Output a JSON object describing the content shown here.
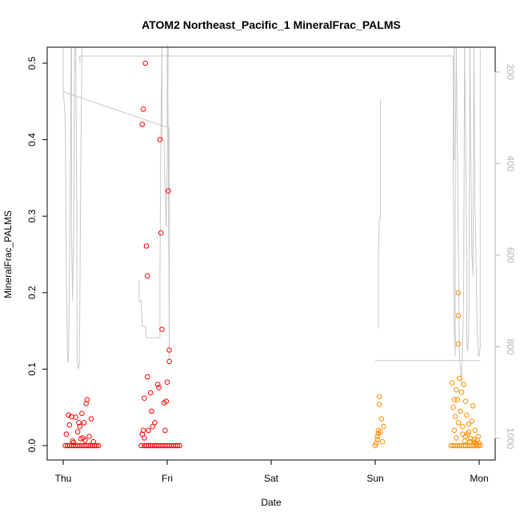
{
  "chart_data": {
    "type": "scatter",
    "title": "ATOM2 Northeast_Pacific_1 MineralFrac_PALMS",
    "xlabel": "Date",
    "ylabel": "MineralFrac_PALMS",
    "x_ticks": [
      "Thu",
      "Fri",
      "Sat",
      "Sun",
      "Mon"
    ],
    "y_ticks": [
      "0.0",
      "0.1",
      "0.2",
      "0.3",
      "0.4",
      "0.5"
    ],
    "y2_ticks": [
      "200",
      "400",
      "600",
      "800",
      "1000"
    ],
    "ylim": [
      0,
      0.52
    ],
    "y2lim": [
      1030,
      145
    ],
    "y2_reversed": true,
    "colors": {
      "series1": "#ff0000",
      "series2": "#ff8c00",
      "altitude": "#c8c8c8",
      "axes": "#000000",
      "y2_axis": "#b4b4b4"
    },
    "series": [
      {
        "color": "red",
        "points": [
          [
            0.02,
            0.0
          ],
          [
            0.04,
            0.0
          ],
          [
            0.06,
            0.0
          ],
          [
            0.08,
            0.0
          ],
          [
            0.1,
            0.0
          ],
          [
            0.12,
            0.0
          ],
          [
            0.14,
            0.0
          ],
          [
            0.16,
            0.0
          ],
          [
            0.18,
            0.0
          ],
          [
            0.2,
            0.0
          ],
          [
            0.22,
            0.0
          ],
          [
            0.24,
            0.0
          ],
          [
            0.26,
            0.0
          ],
          [
            0.28,
            0.0
          ],
          [
            0.3,
            0.0
          ],
          [
            0.32,
            0.0
          ],
          [
            0.34,
            0.0
          ],
          [
            0.03,
            0.015
          ],
          [
            0.05,
            0.04
          ],
          [
            0.06,
            0.027
          ],
          [
            0.08,
            0.038
          ],
          [
            0.09,
            0.006
          ],
          [
            0.1,
            0.004
          ],
          [
            0.12,
            0.037
          ],
          [
            0.14,
            0.018
          ],
          [
            0.16,
            0.025
          ],
          [
            0.17,
            0.009
          ],
          [
            0.18,
            0.042
          ],
          [
            0.19,
            0.01
          ],
          [
            0.2,
            0.03
          ],
          [
            0.21,
            0.007
          ],
          [
            0.22,
            0.055
          ],
          [
            0.23,
            0.06
          ],
          [
            0.25,
            0.012
          ],
          [
            0.27,
            0.035
          ],
          [
            0.29,
            0.005
          ],
          [
            0.15,
            0.03
          ],
          [
            0.75,
            0.0
          ],
          [
            0.78,
            0.0
          ],
          [
            0.8,
            0.0
          ],
          [
            0.82,
            0.0
          ],
          [
            0.84,
            0.0
          ],
          [
            0.86,
            0.0
          ],
          [
            0.88,
            0.0
          ],
          [
            0.9,
            0.0
          ],
          [
            0.92,
            0.0
          ],
          [
            0.94,
            0.0
          ],
          [
            0.96,
            0.0
          ],
          [
            0.98,
            0.0
          ],
          [
            1.0,
            0.0
          ],
          [
            1.02,
            0.0
          ],
          [
            1.04,
            0.0
          ],
          [
            1.06,
            0.0
          ],
          [
            1.08,
            0.0
          ],
          [
            1.1,
            0.0
          ],
          [
            1.12,
            0.0
          ],
          [
            0.76,
            0.42
          ],
          [
            0.77,
            0.44
          ],
          [
            0.76,
            0.015
          ],
          [
            0.77,
            0.02
          ],
          [
            0.78,
            0.062
          ],
          [
            0.78,
            0.01
          ],
          [
            0.79,
            0.5
          ],
          [
            0.8,
            0.261
          ],
          [
            0.81,
            0.222
          ],
          [
            0.81,
            0.09
          ],
          [
            0.82,
            0.02
          ],
          [
            0.84,
            0.069
          ],
          [
            0.85,
            0.045
          ],
          [
            0.86,
            0.025
          ],
          [
            0.88,
            0.03
          ],
          [
            0.91,
            0.08
          ],
          [
            0.92,
            0.076
          ],
          [
            0.93,
            0.4
          ],
          [
            0.94,
            0.278
          ],
          [
            0.95,
            0.152
          ],
          [
            0.97,
            0.056
          ],
          [
            0.98,
            0.02
          ],
          [
            0.99,
            0.058
          ],
          [
            1.0,
            0.083
          ],
          [
            1.01,
            0.333
          ],
          [
            1.02,
            0.125
          ],
          [
            1.02,
            0.11
          ]
        ]
      },
      {
        "color": "orange",
        "points": [
          [
            3.0,
            0.0
          ],
          [
            3.01,
            0.003
          ],
          [
            3.02,
            0.008
          ],
          [
            3.02,
            0.012
          ],
          [
            3.03,
            0.016
          ],
          [
            3.03,
            0.02
          ],
          [
            3.04,
            0.064
          ],
          [
            3.04,
            0.054
          ],
          [
            3.05,
            0.018
          ],
          [
            3.06,
            0.035
          ],
          [
            3.07,
            0.005
          ],
          [
            3.08,
            0.025
          ],
          [
            3.73,
            0.0
          ],
          [
            3.75,
            0.0
          ],
          [
            3.77,
            0.0
          ],
          [
            3.79,
            0.0
          ],
          [
            3.81,
            0.0
          ],
          [
            3.83,
            0.0
          ],
          [
            3.85,
            0.0
          ],
          [
            3.87,
            0.0
          ],
          [
            3.89,
            0.0
          ],
          [
            3.91,
            0.0
          ],
          [
            3.93,
            0.0
          ],
          [
            3.95,
            0.0
          ],
          [
            3.97,
            0.0
          ],
          [
            3.99,
            0.0
          ],
          [
            4.01,
            0.0
          ],
          [
            3.74,
            0.082
          ],
          [
            3.75,
            0.05
          ],
          [
            3.76,
            0.02
          ],
          [
            3.77,
            0.038
          ],
          [
            3.78,
            0.01
          ],
          [
            3.79,
            0.06
          ],
          [
            3.8,
            0.2
          ],
          [
            3.8,
            0.17
          ],
          [
            3.8,
            0.133
          ],
          [
            3.8,
            0.03
          ],
          [
            3.81,
            0.088
          ],
          [
            3.82,
            0.045
          ],
          [
            3.83,
            0.07
          ],
          [
            3.84,
            0.025
          ],
          [
            3.85,
            0.08
          ],
          [
            3.86,
            0.006
          ],
          [
            3.87,
            0.012
          ],
          [
            3.88,
            0.04
          ],
          [
            3.89,
            0.015
          ],
          [
            3.9,
            0.018
          ],
          [
            3.91,
            0.005
          ],
          [
            3.92,
            0.009
          ],
          [
            3.93,
            0.032
          ],
          [
            3.94,
            0.052
          ],
          [
            3.95,
            0.008
          ],
          [
            3.96,
            0.004
          ],
          [
            3.97,
            0.002
          ],
          [
            3.98,
            0.007
          ],
          [
            3.99,
            0.012
          ],
          [
            4.0,
            0.003
          ],
          [
            3.76,
            0.06
          ],
          [
            3.78,
            0.073
          ],
          [
            3.84,
            0.015
          ],
          [
            3.87,
            0.058
          ],
          [
            3.9,
            0.028
          ],
          [
            3.96,
            0.02
          ]
        ]
      }
    ],
    "altitude_line": [
      [
        0.0,
        160
      ],
      [
        0.0,
        240
      ],
      [
        0.02,
        300
      ],
      [
        0.03,
        650
      ],
      [
        0.04,
        810
      ],
      [
        0.05,
        840
      ],
      [
        0.06,
        640
      ],
      [
        0.07,
        380
      ],
      [
        0.08,
        140
      ],
      [
        0.08,
        550
      ],
      [
        0.09,
        700
      ],
      [
        0.1,
        570
      ],
      [
        0.12,
        140
      ],
      [
        0.13,
        490
      ],
      [
        0.14,
        830
      ],
      [
        0.14,
        850
      ],
      [
        0.15,
        840
      ],
      [
        0.16,
        700
      ],
      [
        0.17,
        380
      ],
      [
        0.18,
        140
      ],
      [
        0.19,
        170
      ],
      [
        0.95,
        170
      ],
      [
        0.95,
        340
      ],
      [
        0.97,
        350
      ],
      [
        0.98,
        470
      ],
      [
        0.99,
        540
      ],
      [
        1.0,
        390
      ],
      [
        1.0,
        140
      ],
      [
        1.01,
        330
      ],
      [
        1.02,
        820
      ],
      [
        1.02,
        780
      ],
      [
        0.73,
        650
      ],
      [
        0.73,
        700
      ],
      [
        0.75,
        700
      ],
      [
        0.76,
        750
      ],
      [
        0.8,
        750
      ],
      [
        0.82,
        780
      ],
      [
        0.85,
        780
      ],
      [
        0.9,
        780
      ],
      [
        0.92,
        650
      ],
      [
        0.92,
        310
      ],
      [
        0.94,
        140
      ],
      [
        0.95,
        140
      ],
      [
        0.0,
        243
      ],
      [
        1.0,
        320
      ]
    ]
  }
}
